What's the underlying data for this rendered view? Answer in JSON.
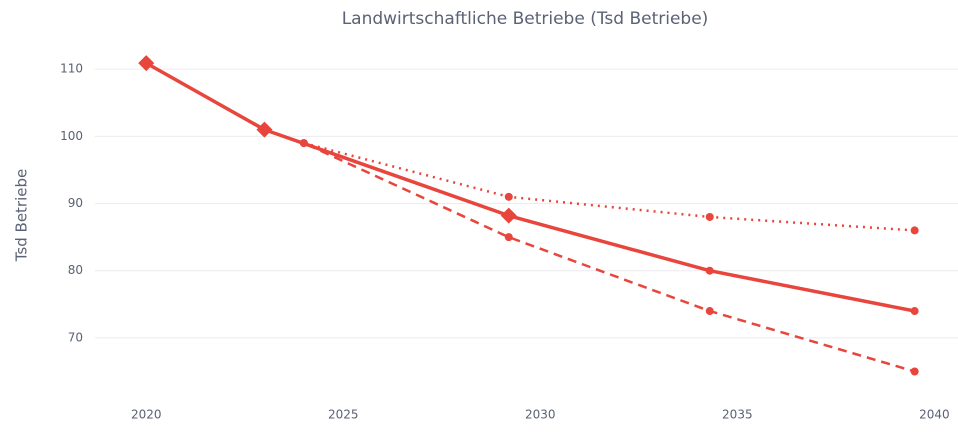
{
  "chart_data": {
    "type": "line",
    "title": "Landwirtschaftliche Betriebe (Tsd Betriebe)",
    "y_label": "Tsd Betriebe",
    "series": [
      {
        "color": "#e8453c",
        "dash": "solid",
        "x": [
          2020,
          2023,
          2029.2,
          2034.3,
          2039.5
        ],
        "values": [
          110.9,
          101,
          88.2,
          80,
          74
        ],
        "markers": [
          "diamond",
          "diamond",
          "diamond",
          "circle",
          "circle"
        ]
      },
      {
        "color": "#e8453c",
        "dash": "dot",
        "x": [
          2023,
          2024,
          2029.2,
          2034.3,
          2039.5
        ],
        "values": [
          101,
          99,
          91,
          88,
          86
        ],
        "markers": [
          "circle",
          "circle",
          "circle",
          "circle",
          "circle"
        ]
      },
      {
        "color": "#e8453c",
        "dash": "dash",
        "x": [
          2023,
          2024,
          2029.2,
          2034.3,
          2039.5
        ],
        "values": [
          101,
          99,
          85,
          74,
          65
        ],
        "markers": [
          "circle",
          "circle",
          "circle",
          "circle",
          "circle"
        ]
      }
    ],
    "xlim": [
      2018.7,
      2040.6
    ],
    "xticks": [
      2020,
      2025,
      2030,
      2035,
      2040
    ],
    "ylim": [
      61.5,
      113.6
    ],
    "yticks": [
      70,
      80,
      90,
      100,
      110
    ],
    "grid": true
  }
}
